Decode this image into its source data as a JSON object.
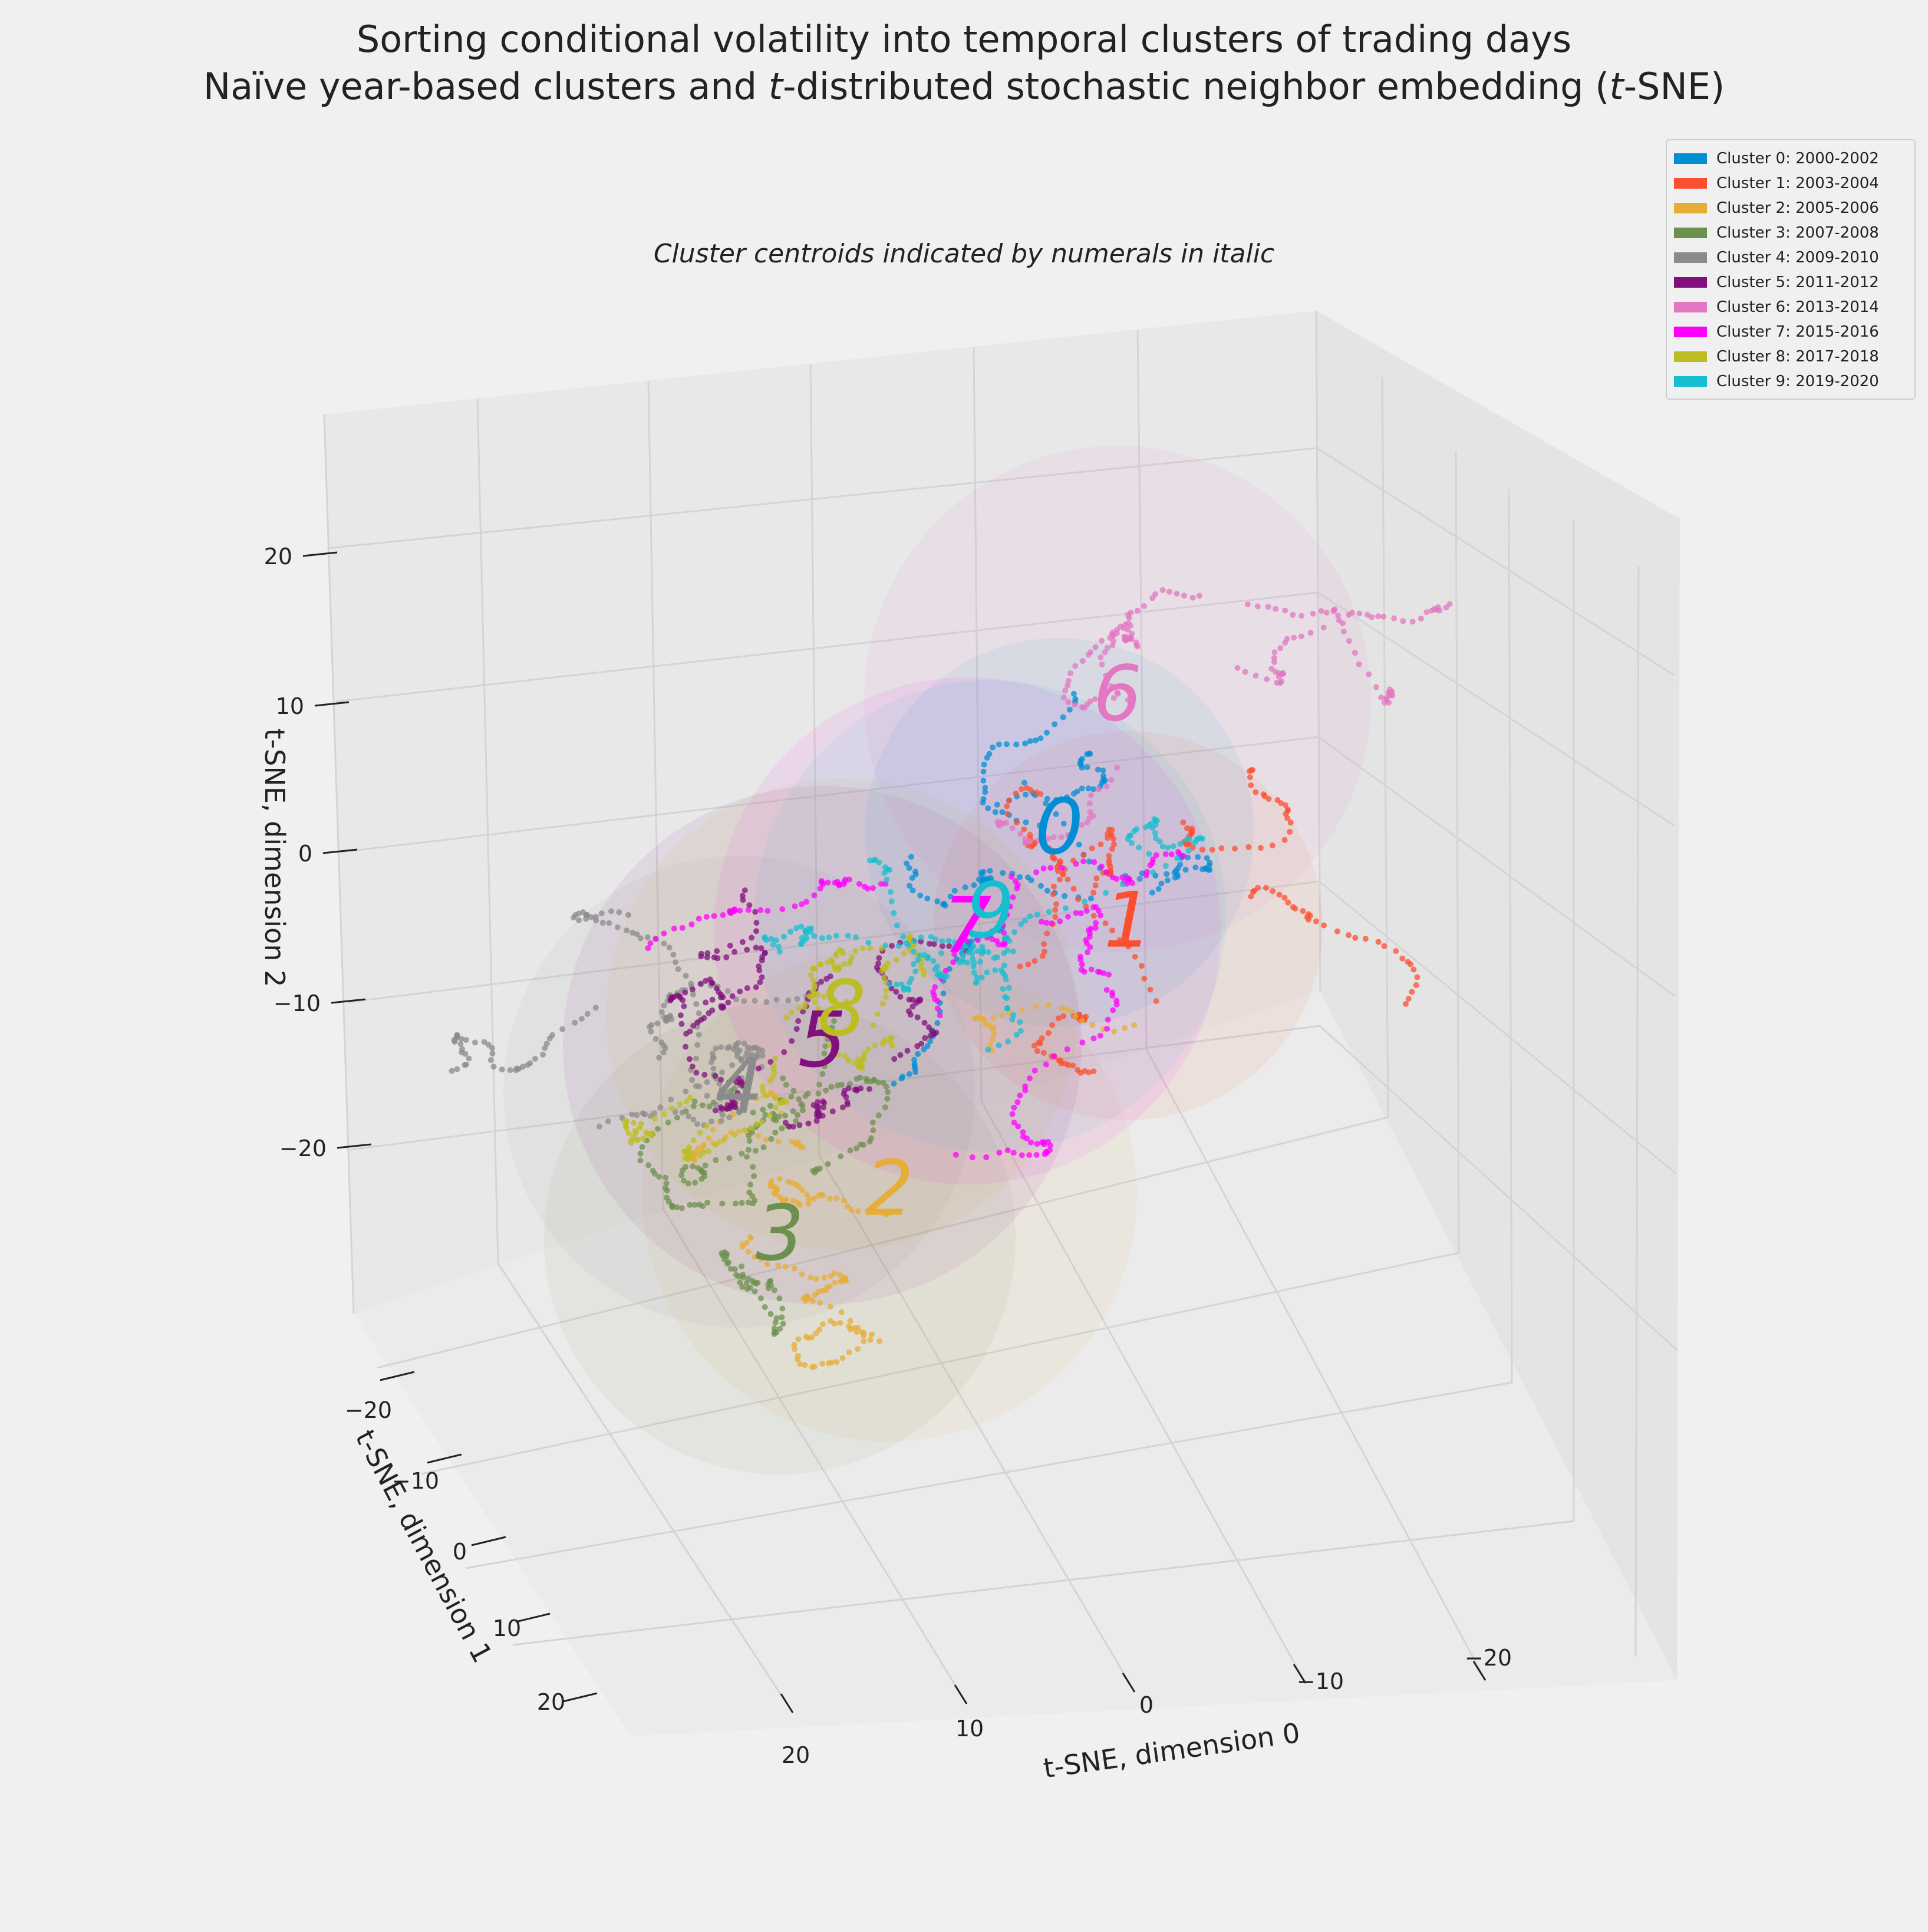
{
  "chart_data": {
    "type": "scatter",
    "dimensions": 3,
    "title": "Sorting conditional volatility into temporal clusters of trading days",
    "title_line2_parts": [
      "Naïve year-based clusters and ",
      "t",
      "-distributed stochastic neighbor embedding (",
      "t",
      "-SNE)"
    ],
    "subtitle": "Cluster centroids indicated by numerals in italic",
    "xlabel": "t-SNE, dimension 0",
    "ylabel": "t-SNE, dimension 1",
    "zlabel": "t-SNE, dimension 2",
    "x_ticks": [
      "20",
      "10",
      "0",
      "−10",
      "−20"
    ],
    "y_ticks": [
      "−20",
      "−10",
      "0",
      "10",
      "20"
    ],
    "z_ticks": [
      "20",
      "10",
      "0",
      "−10",
      "−20"
    ],
    "xlim": [
      -25,
      25
    ],
    "ylim": [
      -25,
      25
    ],
    "zlim": [
      -25,
      25
    ],
    "grid": true,
    "legend_position": "top-right",
    "clusters": [
      {
        "id": 0,
        "name": "Cluster 0: 2000-2002",
        "color": "#008fd5",
        "centroid": [
          -3,
          -7,
          8
        ]
      },
      {
        "id": 1,
        "name": "Cluster 1: 2003-2004",
        "color": "#fc4f30",
        "centroid": [
          -2,
          -14,
          4
        ]
      },
      {
        "id": 2,
        "name": "Cluster 2: 2005-2006",
        "color": "#e5ae38",
        "centroid": [
          8,
          -9,
          -12
        ]
      },
      {
        "id": 3,
        "name": "Cluster 3: 2007-2008",
        "color": "#6d904f",
        "centroid": [
          10,
          -3,
          -16
        ]
      },
      {
        "id": 4,
        "name": "Cluster 4: 2009-2010",
        "color": "#8b8b8b",
        "centroid": [
          6,
          6,
          -10
        ]
      },
      {
        "id": 5,
        "name": "Cluster 5: 2011-2012",
        "color": "#810f7c",
        "centroid": [
          2,
          5,
          -8
        ]
      },
      {
        "id": 6,
        "name": "Cluster 6: 2013-2014",
        "color": "#e377c2",
        "centroid": [
          -14,
          4,
          10
        ]
      },
      {
        "id": 7,
        "name": "Cluster 7: 2015-2016",
        "color": "#ff00ff",
        "centroid": [
          -2,
          -1,
          0
        ]
      },
      {
        "id": 8,
        "name": "Cluster 8: 2017-2018",
        "color": "#bcbd22",
        "centroid": [
          -4,
          12,
          -10
        ]
      },
      {
        "id": 9,
        "name": "Cluster 9: 2019-2020",
        "color": "#17becf",
        "centroid": [
          -4,
          0,
          0
        ]
      }
    ]
  }
}
